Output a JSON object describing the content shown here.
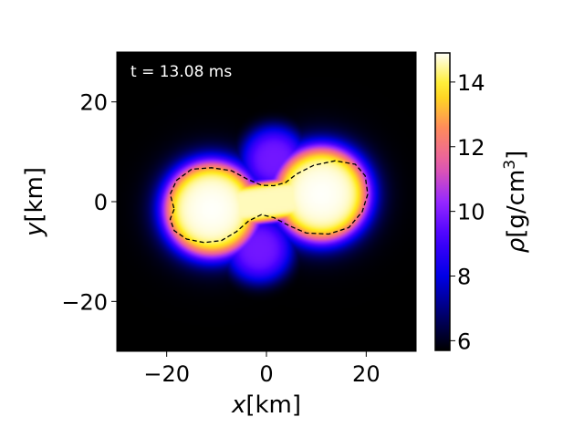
{
  "chart_data": {
    "type": "heatmap",
    "title": "",
    "annotation": "t = 13.08 ms",
    "xlabel_var": "x",
    "xlabel_unit": "[km]",
    "ylabel_var": "y",
    "ylabel_unit": "[km]",
    "xlim": [
      -30,
      30
    ],
    "ylim": [
      -30,
      30
    ],
    "xticks": [
      -20,
      0,
      20
    ],
    "yticks": [
      -20,
      0,
      20
    ],
    "xtick_labels": [
      "−20",
      "0",
      "20"
    ],
    "ytick_labels": [
      "−20",
      "0",
      "20"
    ],
    "colorbar": {
      "label_var": "ρ",
      "label_unit_pre": "[g/cm",
      "label_unit_sup": "3",
      "label_unit_post": "]",
      "range": [
        5.7,
        14.9
      ],
      "ticks": [
        6,
        8,
        10,
        12,
        14
      ],
      "colormap": "gnuplot2"
    },
    "field": {
      "background_value": 5.7,
      "lobes": [
        {
          "x": -11,
          "y": -1.5,
          "peak": 14.9,
          "radius": 9.8
        },
        {
          "x": 11,
          "y": 1.5,
          "peak": 14.9,
          "radius": 9.8
        }
      ],
      "bridge": {
        "from": [
          -11,
          -1.5
        ],
        "to": [
          11,
          1.5
        ],
        "peak": 14.6,
        "radius": 4.2
      },
      "arms": [
        {
          "x": 1.5,
          "y": 8.5,
          "peak": 9.8,
          "radius": 6.8
        },
        {
          "x": -1.5,
          "y": -9.5,
          "peak": 9.8,
          "radius": 7.0
        }
      ]
    },
    "contour": {
      "style": "dashed",
      "color": "#000000",
      "points": [
        [
          -18.5,
          -1.5
        ],
        [
          -19.3,
          -3.5
        ],
        [
          -18.5,
          -5.8
        ],
        [
          -16,
          -7.5
        ],
        [
          -12.5,
          -8.2
        ],
        [
          -9,
          -7.8
        ],
        [
          -6,
          -6
        ],
        [
          -3.5,
          -3.8
        ],
        [
          -1,
          -2.6
        ],
        [
          1.5,
          -3.2
        ],
        [
          4.5,
          -4.8
        ],
        [
          8,
          -6.3
        ],
        [
          12.5,
          -6.5
        ],
        [
          16.5,
          -5.2
        ],
        [
          19.2,
          -2
        ],
        [
          20.3,
          1.5
        ],
        [
          19.8,
          5.2
        ],
        [
          17.8,
          7.5
        ],
        [
          13.8,
          8.2
        ],
        [
          9.5,
          7.3
        ],
        [
          6,
          5.5
        ],
        [
          3.8,
          3.8
        ],
        [
          1.5,
          3.2
        ],
        [
          -1,
          3.3
        ],
        [
          -3.8,
          4.5
        ],
        [
          -7,
          6.2
        ],
        [
          -11,
          6.8
        ],
        [
          -15,
          6.5
        ],
        [
          -18,
          4.3
        ],
        [
          -19.3,
          1.5
        ]
      ]
    }
  }
}
